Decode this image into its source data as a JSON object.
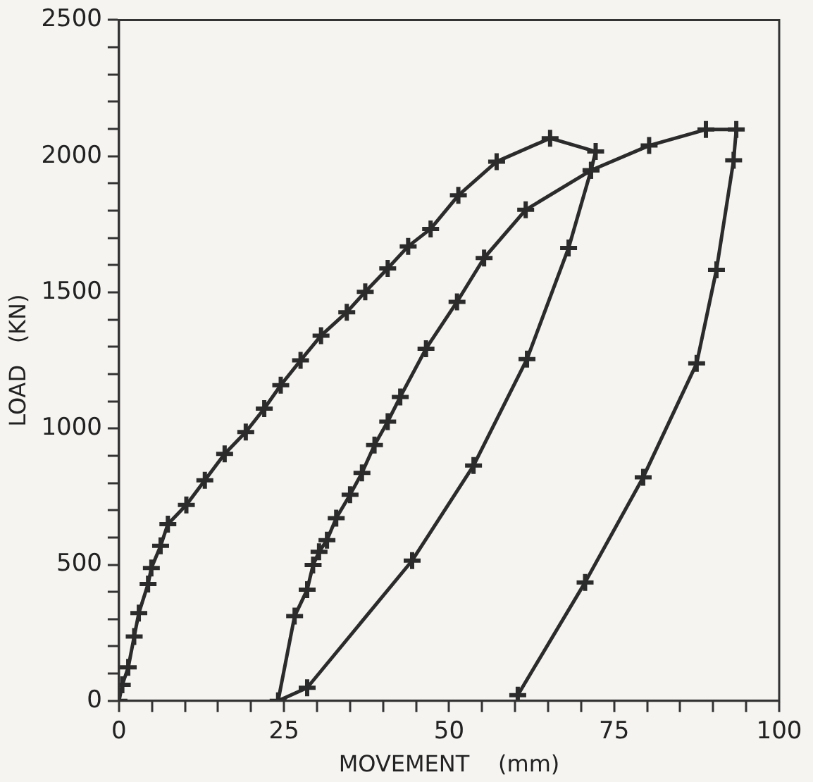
{
  "chart_data": {
    "type": "line",
    "xlabel": "MOVEMENT    (mm)",
    "ylabel": "LOAD   (KN)",
    "series": [
      {
        "color": "#2b2b2b",
        "x": [
          0,
          0.5,
          1.4,
          2.3,
          3.0,
          4.4,
          4.9,
          6.3,
          7.4,
          10.2,
          13.0,
          16.0,
          19.2,
          22.0,
          24.5,
          27.5,
          30.6,
          34.5,
          37.3,
          40.7,
          43.8,
          47.2,
          51.4,
          57.2,
          65.3,
          72.2,
          71.5,
          68.1,
          61.8,
          53.7,
          44.4,
          28.5,
          24.1,
          26.6,
          28.5,
          29.4,
          30.3,
          31.5,
          32.9,
          35.0,
          36.8,
          38.7,
          40.7,
          42.6,
          46.5,
          51.2,
          55.3,
          61.6,
          71.5,
          80.3,
          88.9,
          93.5,
          93.1,
          90.5,
          87.5,
          79.4,
          70.6,
          60.4
        ],
        "values": [
          0,
          59,
          123,
          236,
          322,
          429,
          488,
          569,
          649,
          719,
          810,
          907,
          987,
          1073,
          1159,
          1250,
          1341,
          1427,
          1502,
          1588,
          1669,
          1733,
          1856,
          1980,
          2066,
          2017,
          1948,
          1663,
          1255,
          864,
          515,
          48,
          0,
          311,
          408,
          499,
          547,
          590,
          671,
          757,
          837,
          939,
          1025,
          1116,
          1293,
          1465,
          1626,
          1803,
          1948,
          2039,
          2098,
          2098,
          1985,
          1583,
          1239,
          821,
          435,
          21
        ]
      }
    ],
    "xlim": [
      0,
      100
    ],
    "ylim": [
      0,
      2500
    ],
    "xticks": [
      0,
      {
        "value": 5,
        "label": null
      },
      {
        "value": 10,
        "label": null
      },
      {
        "value": 15,
        "label": null
      },
      {
        "value": 20,
        "label": null
      },
      25,
      {
        "value": 30,
        "label": null
      },
      {
        "value": 35,
        "label": null
      },
      {
        "value": 40,
        "label": null
      },
      {
        "value": 45,
        "label": null
      },
      50,
      {
        "value": 55,
        "label": null
      },
      {
        "value": 60,
        "label": null
      },
      {
        "value": 65,
        "label": null
      },
      {
        "value": 70,
        "label": null
      },
      75,
      {
        "value": 80,
        "label": null
      },
      {
        "value": 85,
        "label": null
      },
      {
        "value": 90,
        "label": null
      },
      {
        "value": 95,
        "label": null
      },
      100
    ],
    "yticks": [
      0,
      {
        "value": 100,
        "label": null
      },
      {
        "value": 200,
        "label": null
      },
      {
        "value": 300,
        "label": null
      },
      {
        "value": 400,
        "label": null
      },
      500,
      {
        "value": 600,
        "label": null
      },
      {
        "value": 700,
        "label": null
      },
      {
        "value": 800,
        "label": null
      },
      {
        "value": 900,
        "label": null
      },
      1000,
      {
        "value": 1100,
        "label": null
      },
      {
        "value": 1200,
        "label": null
      },
      {
        "value": 1300,
        "label": null
      },
      {
        "value": 1400,
        "label": null
      },
      1500,
      {
        "value": 1600,
        "label": null
      },
      {
        "value": 1700,
        "label": null
      },
      {
        "value": 1800,
        "label": null
      },
      {
        "value": 1900,
        "label": null
      },
      2000,
      {
        "value": 2100,
        "label": null
      },
      {
        "value": 2200,
        "label": null
      },
      {
        "value": 2300,
        "label": null
      },
      {
        "value": 2400,
        "label": null
      },
      2500
    ],
    "grid": false,
    "legend": false,
    "marker": "cross",
    "line_style": "solid"
  }
}
